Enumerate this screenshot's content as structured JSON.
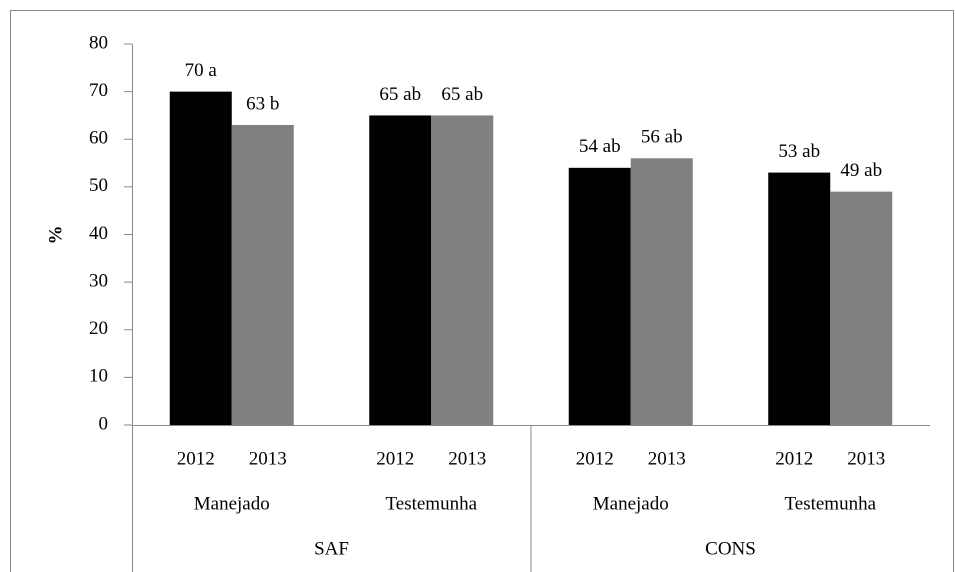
{
  "chart_data": {
    "type": "bar",
    "y_label": "%",
    "categories": [
      "2012",
      "2013",
      "2012",
      "2013",
      "2012",
      "2013",
      "2012",
      "2013"
    ],
    "subgroups": [
      "Manejado",
      "Testemunha",
      "Manejado",
      "Testemunha"
    ],
    "groups": [
      "SAF",
      "CONS"
    ],
    "values": [
      70,
      63,
      65,
      65,
      54,
      56,
      53,
      49
    ],
    "value_labels": [
      "70 a",
      "63 b",
      "65 ab",
      "65 ab",
      "54 ab",
      "56 ab",
      "53 ab",
      "49 ab"
    ],
    "colors": [
      "#000000",
      "#808080",
      "#000000",
      "#808080",
      "#000000",
      "#808080",
      "#000000",
      "#808080"
    ],
    "ylim": [
      0,
      80
    ],
    "yticks": [
      0,
      10,
      20,
      30,
      40,
      50,
      60,
      70,
      80
    ],
    "grid": false
  }
}
